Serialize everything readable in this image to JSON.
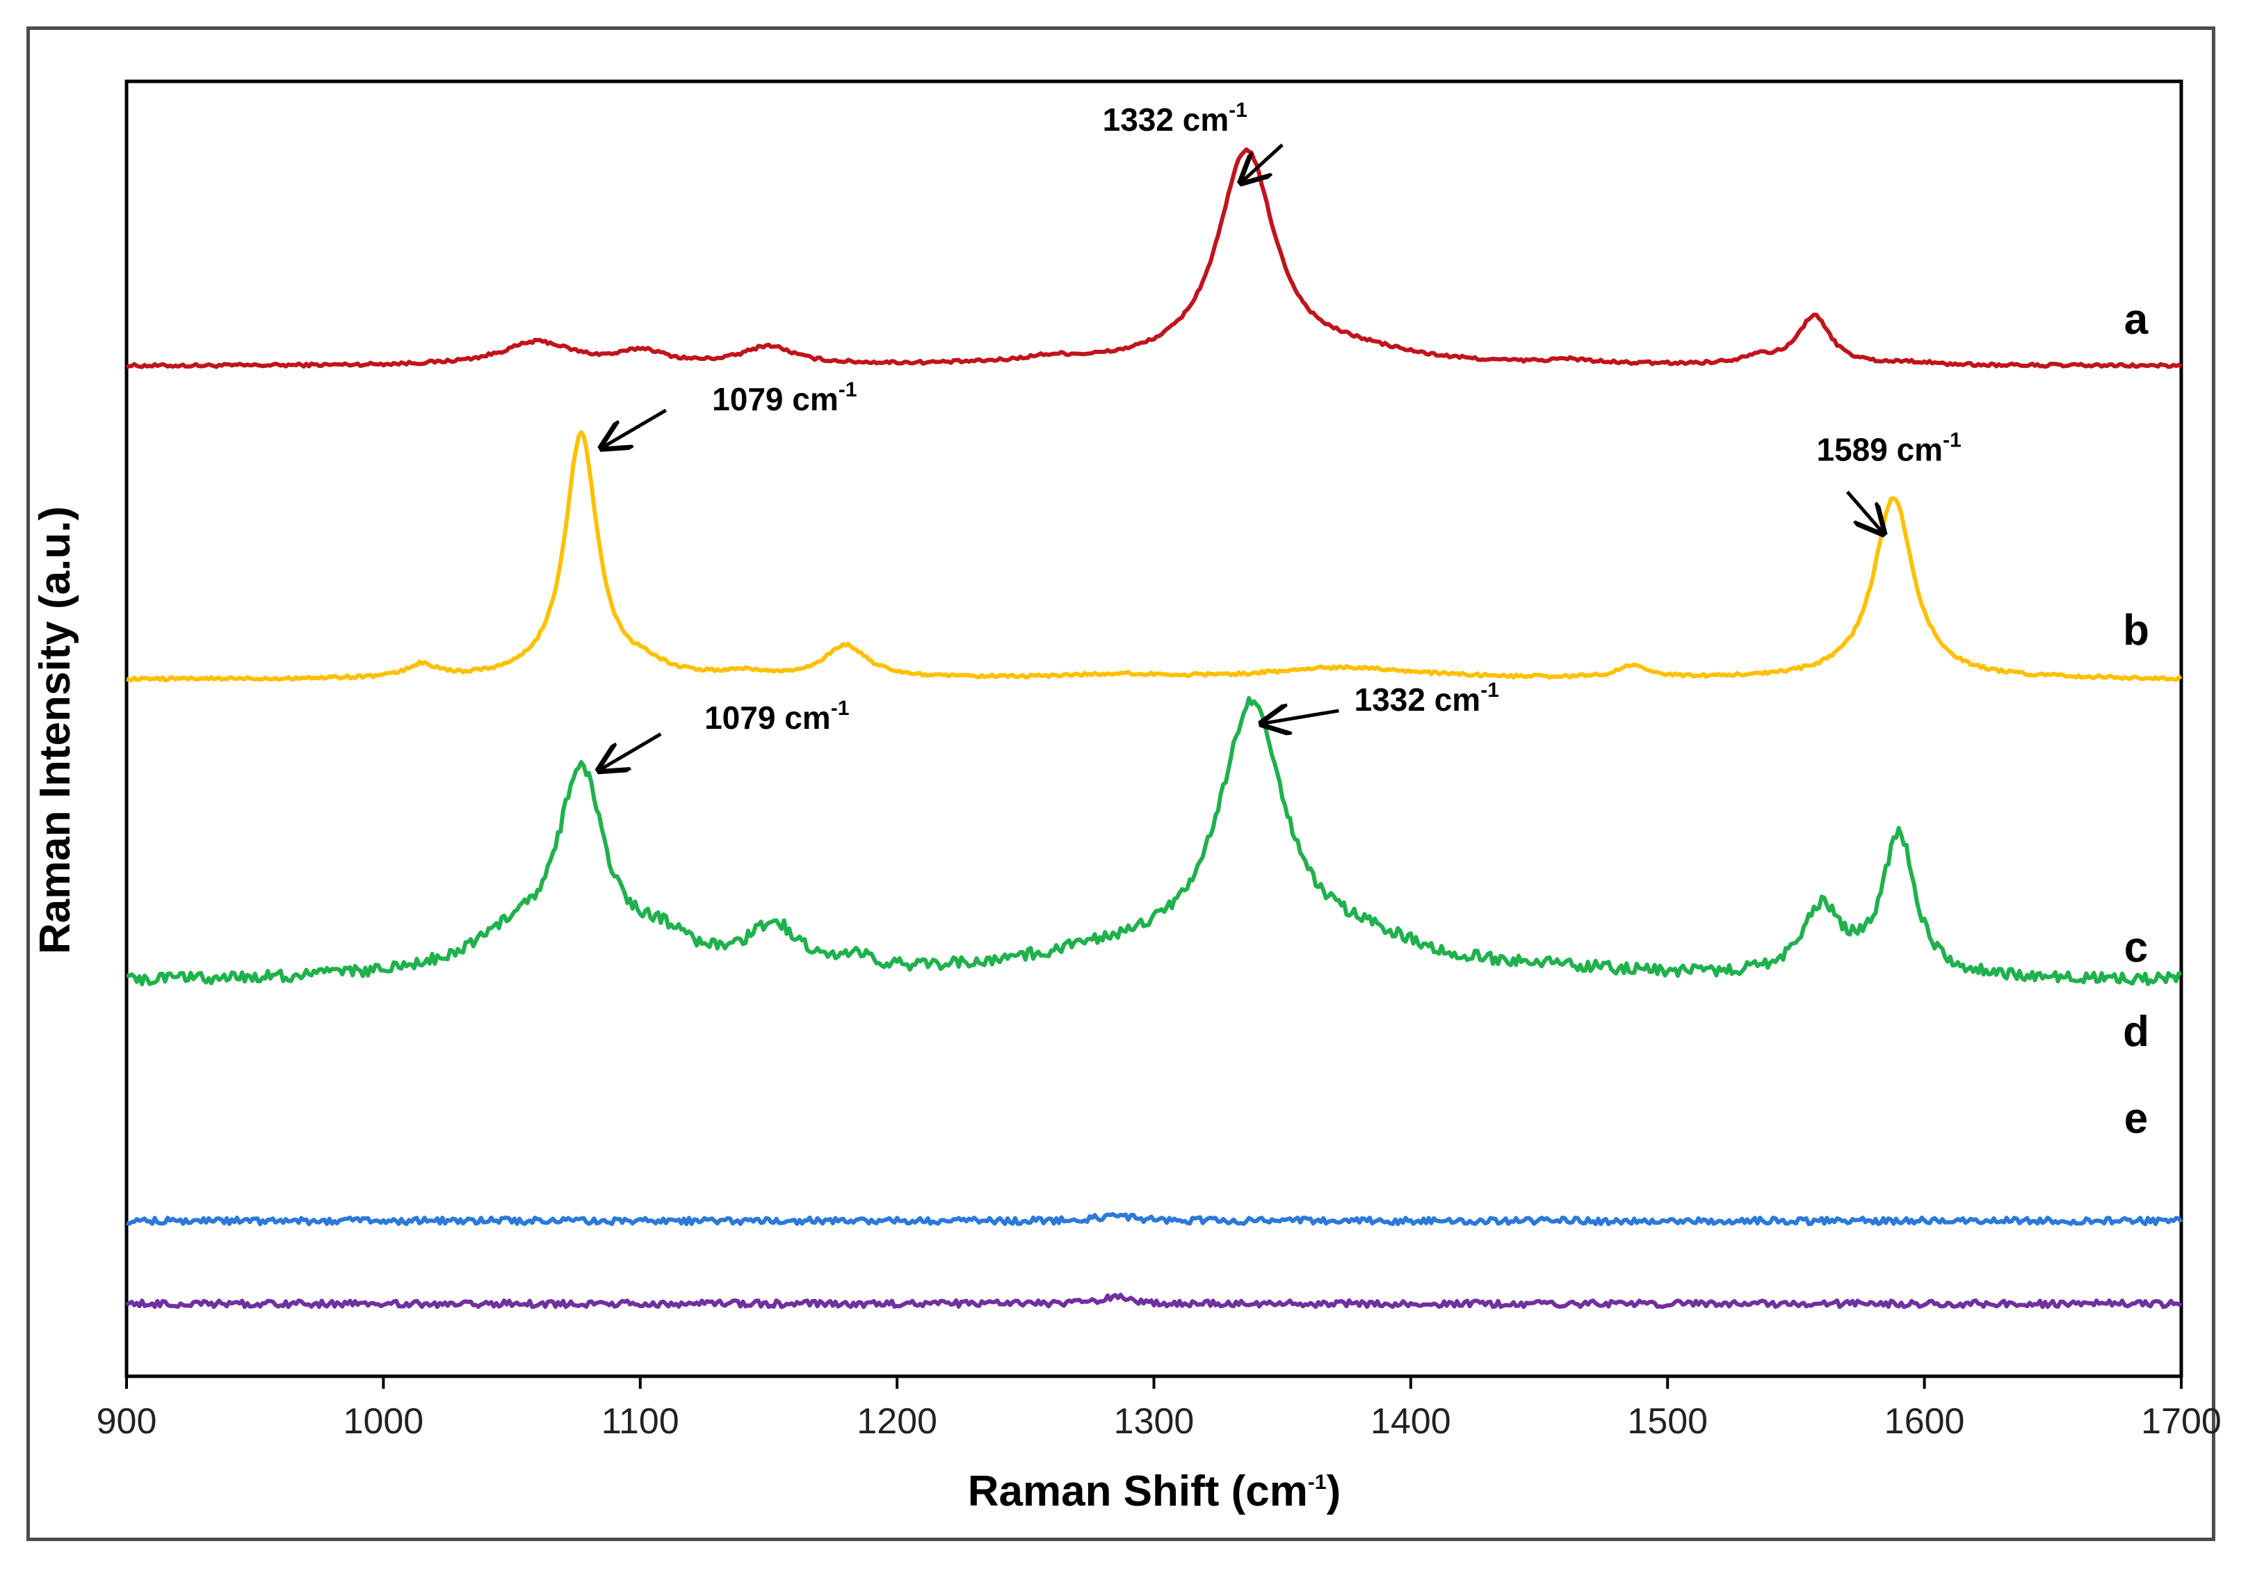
{
  "chart_data": {
    "type": "line",
    "title": "",
    "xlabel": "Raman Shift (cm",
    "xlabel_sup": "-1",
    "xlabel_tail": ")",
    "ylabel": "Raman Intensity (a.u.)",
    "xlim": [
      900,
      1700
    ],
    "ylim": [
      0,
      100
    ],
    "xticks": [
      "900",
      "1000",
      "1100",
      "1200",
      "1300",
      "1400",
      "1500",
      "1600",
      "1700"
    ],
    "grid": false,
    "legend": "none",
    "series": [
      {
        "name": "a",
        "color": "#c0141c",
        "baseline": 78.0,
        "noise": 0.12,
        "peaks": [
          {
            "x": 1060,
            "h": 1.8,
            "w": 20
          },
          {
            "x": 1101,
            "h": 1.0,
            "w": 12
          },
          {
            "x": 1150,
            "h": 1.4,
            "w": 14
          },
          {
            "x": 1260,
            "h": 0.4,
            "w": 15
          },
          {
            "x": 1336,
            "h": 16.5,
            "w": 16
          },
          {
            "x": 1380,
            "h": 0.8,
            "w": 30
          },
          {
            "x": 1462,
            "h": 0.3,
            "w": 12
          },
          {
            "x": 1535,
            "h": 0.6,
            "w": 8
          },
          {
            "x": 1557,
            "h": 3.8,
            "w": 9
          },
          {
            "x": 1595,
            "h": 0.2,
            "w": 10
          }
        ]
      },
      {
        "name": "b",
        "color": "#ffc000",
        "baseline": 53.8,
        "noise": 0.12,
        "peaks": [
          {
            "x": 1015,
            "h": 1.0,
            "w": 8
          },
          {
            "x": 1077,
            "h": 19.0,
            "w": 9
          },
          {
            "x": 1102,
            "h": 0.7,
            "w": 10
          },
          {
            "x": 1140,
            "h": 0.4,
            "w": 10
          },
          {
            "x": 1180,
            "h": 2.5,
            "w": 12
          },
          {
            "x": 1285,
            "h": 0.3,
            "w": 30
          },
          {
            "x": 1375,
            "h": 0.9,
            "w": 40
          },
          {
            "x": 1486,
            "h": 0.9,
            "w": 8
          },
          {
            "x": 1588,
            "h": 14.0,
            "w": 11
          }
        ]
      },
      {
        "name": "c",
        "color": "#1fb14c",
        "baseline": 30.5,
        "noise": 0.45,
        "peaks": [
          {
            "x": 1077,
            "h": 15.0,
            "w": 13
          },
          {
            "x": 1050,
            "h": 2.6,
            "w": 28
          },
          {
            "x": 1108,
            "h": 2.3,
            "w": 18
          },
          {
            "x": 1152,
            "h": 3.5,
            "w": 15
          },
          {
            "x": 1185,
            "h": 1.0,
            "w": 7
          },
          {
            "x": 1290,
            "h": 1.8,
            "w": 60
          },
          {
            "x": 1338,
            "h": 19.5,
            "w": 18
          },
          {
            "x": 1380,
            "h": 2.2,
            "w": 45
          },
          {
            "x": 1460,
            "h": 0.4,
            "w": 30
          },
          {
            "x": 1560,
            "h": 5.2,
            "w": 11
          },
          {
            "x": 1590,
            "h": 11.0,
            "w": 9
          }
        ]
      },
      {
        "name": "d",
        "color": "#2b79d8",
        "baseline": 12.0,
        "noise": 0.25,
        "peaks": [
          {
            "x": 1285,
            "h": 0.5,
            "w": 8
          }
        ]
      },
      {
        "name": "e",
        "color": "#7030a0",
        "baseline": 5.6,
        "noise": 0.25,
        "peaks": [
          {
            "x": 1285,
            "h": 0.5,
            "w": 8
          }
        ]
      }
    ],
    "series_labels": [
      {
        "text": "a",
        "y": 80.5
      },
      {
        "text": "b",
        "y": 56.5
      },
      {
        "text": "c",
        "y": 32.0
      },
      {
        "text": "d",
        "y": 25.5
      },
      {
        "text": "e",
        "y": 18.8
      }
    ],
    "annotations": [
      {
        "text": "1332 cm",
        "sup": "-1",
        "tx": 1280,
        "ty": 96.2,
        "ax": 1350,
        "ay": 95.1,
        "hx": 1334,
        "hy": 92.2
      },
      {
        "text": "1079 cm",
        "sup": "-1",
        "tx": 1128,
        "ty": 74.6,
        "ax": 1110,
        "ay": 74.6,
        "hx": 1085,
        "hy": 71.7
      },
      {
        "text": "1589 cm",
        "sup": "-1",
        "tx": 1558,
        "ty": 70.7,
        "ax": 1570,
        "ay": 68.3,
        "hx": 1584,
        "hy": 65.1
      },
      {
        "text": "1079 cm",
        "sup": "-1",
        "tx": 1125,
        "ty": 50.0,
        "ax": 1108,
        "ay": 49.6,
        "hx": 1084,
        "hy": 46.8
      },
      {
        "text": "1332 cm",
        "sup": "-1",
        "tx": 1378,
        "ty": 51.4,
        "ax": 1372,
        "ay": 51.4,
        "hx": 1342,
        "hy": 50.4
      }
    ]
  }
}
